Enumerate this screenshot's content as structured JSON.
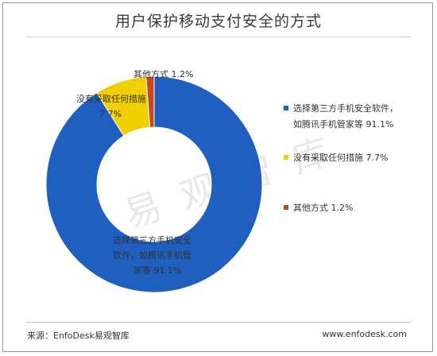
{
  "title": "用户保护移动支付安全的方式",
  "footer": {
    "source": "来源：EnfoDesk易观智库",
    "website": "www.enfodesk.com"
  },
  "watermark": "易观智库",
  "chart_data": {
    "type": "pie",
    "donut": true,
    "title": "用户保护移动支付安全的方式",
    "categories": [
      "选择第三方手机安全软件，如腾讯手机管家等",
      "没有采取任何措施",
      "其他方式"
    ],
    "values": [
      91.1,
      7.7,
      1.2
    ],
    "value_labels": [
      "91.1%",
      "7.7%",
      "1.2%"
    ],
    "colors": [
      "#1f5fbf",
      "#f0cf00",
      "#c8471e"
    ],
    "legend_position": "right"
  },
  "legend": [
    {
      "line1": "选择第三方手机安全软件，",
      "line2": "如腾讯手机管家等  91.1%"
    },
    {
      "line1": "没有采取任何措施  7.7%"
    },
    {
      "line1": "其他方式  1.2%"
    }
  ],
  "labels": {
    "blue": [
      "选择第三方手机安全",
      "软件，如腾讯手机管",
      "家等  91.1%"
    ],
    "yellow": [
      "没有采取任何措施",
      "7.7%"
    ],
    "red": [
      "其他方式  1.2%"
    ]
  }
}
